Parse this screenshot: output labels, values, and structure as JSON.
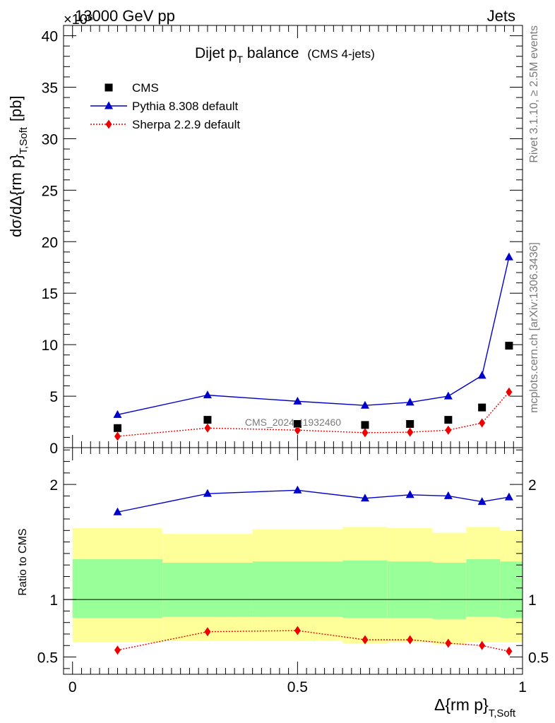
{
  "header": {
    "left": "13000 GeV pp",
    "right": "Jets",
    "exponent": "×10⁶"
  },
  "side_labels": {
    "rivet": "Rivet 3.1.10, ≥ 2.5M events",
    "mcplots": "mcplots.cern.ch [arXiv:1306.3436]"
  },
  "watermark": "CMS_2024_I1932460",
  "colors": {
    "cms": "#000000",
    "pythia": "#0000cc",
    "sherpa": "#ee0000",
    "band_inner": "#99ff99",
    "band_outer": "#ffff99"
  },
  "chart_data": [
    {
      "type": "scatter",
      "title": "Dijet p_T balance",
      "title_parts": {
        "main": "Dijet p",
        "sub": "T",
        "rest": " balance",
        "note": "(CMS 4-jets)"
      },
      "ylabel": "dσ/dΔ{rm p}_T,Soft [pb]",
      "ylabel_parts": {
        "main": "dσ/dΔ{rm p}",
        "sub": "T,Soft",
        "unit": "[pb]"
      },
      "xlabel": "",
      "ylim": [
        0,
        41
      ],
      "xlim": [
        -0.02,
        1.0
      ],
      "y_scale_note": "×10⁶",
      "y_ticks": [
        0,
        5,
        10,
        15,
        20,
        25,
        30,
        35,
        40
      ],
      "legend_position": "top-left",
      "series": [
        {
          "name": "CMS",
          "style": "square",
          "x": [
            0.1,
            0.3,
            0.5,
            0.65,
            0.75,
            0.835,
            0.91,
            0.97
          ],
          "values": [
            1.9,
            2.7,
            2.3,
            2.2,
            2.3,
            2.7,
            3.9,
            9.9
          ]
        },
        {
          "name": "Pythia 8.308 default",
          "style": "triangle-line",
          "x": [
            0.1,
            0.3,
            0.5,
            0.65,
            0.75,
            0.835,
            0.91,
            0.97
          ],
          "values": [
            3.2,
            5.1,
            4.5,
            4.1,
            4.4,
            5.0,
            7.0,
            18.5
          ]
        },
        {
          "name": "Sherpa 2.2.9 default",
          "style": "diamond-dotted",
          "x": [
            0.1,
            0.3,
            0.5,
            0.65,
            0.75,
            0.835,
            0.91,
            0.97
          ],
          "values": [
            1.1,
            1.9,
            1.7,
            1.45,
            1.5,
            1.7,
            2.4,
            5.4
          ]
        }
      ]
    },
    {
      "type": "scatter",
      "ylabel": "Ratio to CMS",
      "xlabel": "Δ{rm p}_T,Soft",
      "xlabel_parts": {
        "main": "Δ{rm p}",
        "sub": "T,Soft"
      },
      "ylim": [
        0.35,
        2.32
      ],
      "xlim": [
        -0.02,
        1.0
      ],
      "x_ticks": [
        0,
        0.5,
        1
      ],
      "x_tick_labels": [
        "0",
        "0.5",
        "1"
      ],
      "y_ticks": [
        0.5,
        1,
        2
      ],
      "y_tick_labels": [
        "0.5",
        "1",
        "2"
      ],
      "bands": {
        "edges": [
          0.0,
          0.2,
          0.4,
          0.6,
          0.7,
          0.8,
          0.875,
          0.95,
          1.0
        ],
        "inner_lo": [
          0.84,
          0.85,
          0.85,
          0.84,
          0.84,
          0.83,
          0.85,
          0.84
        ],
        "inner_hi": [
          1.35,
          1.32,
          1.33,
          1.34,
          1.33,
          1.32,
          1.35,
          1.33
        ],
        "outer_lo": [
          0.63,
          0.64,
          0.64,
          0.62,
          0.63,
          0.61,
          0.63,
          0.63
        ],
        "outer_hi": [
          1.62,
          1.57,
          1.61,
          1.63,
          1.62,
          1.58,
          1.63,
          1.6
        ]
      },
      "series": [
        {
          "name": "Pythia 8.308 default",
          "style": "triangle-line",
          "x": [
            0.1,
            0.3,
            0.5,
            0.65,
            0.75,
            0.835,
            0.91,
            0.97
          ],
          "values": [
            1.76,
            1.92,
            1.95,
            1.88,
            1.91,
            1.9,
            1.85,
            1.89
          ]
        },
        {
          "name": "Sherpa 2.2.9 default",
          "style": "diamond-dotted",
          "x": [
            0.1,
            0.3,
            0.5,
            0.65,
            0.75,
            0.835,
            0.91,
            0.97
          ],
          "values": [
            0.56,
            0.72,
            0.73,
            0.65,
            0.65,
            0.62,
            0.6,
            0.55
          ]
        }
      ]
    }
  ]
}
